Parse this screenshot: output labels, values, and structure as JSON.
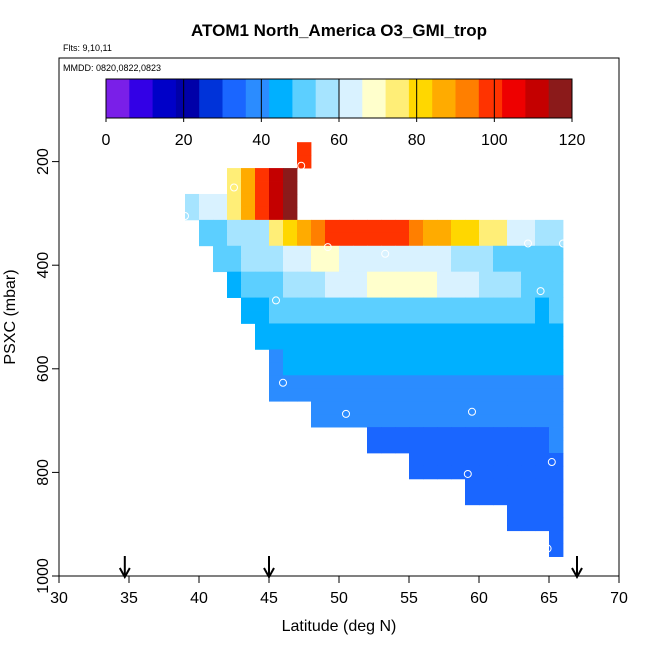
{
  "chart_data": {
    "type": "heatmap",
    "title": "ATOM1 North_America O3_GMI_trop",
    "notes": {
      "flights": "Flts: 9,10,11",
      "dates": "MMDD: 0820,0822,0823"
    },
    "xlabel": "Latitude (deg N)",
    "ylabel": "PSXC (mbar)",
    "xlim": [
      30,
      70
    ],
    "ylim": [
      1000,
      0
    ],
    "x_ticks": [
      30,
      35,
      40,
      45,
      50,
      55,
      60,
      65,
      70
    ],
    "y_ticks": [
      200,
      400,
      600,
      800,
      1000
    ],
    "colorbar": {
      "range": [
        0,
        120
      ],
      "ticks": [
        0,
        20,
        40,
        60,
        80,
        100,
        120
      ],
      "colors": [
        "#7a1fe8",
        "#3300e6",
        "#0000c8",
        "#0000a8",
        "#0033d9",
        "#1a66ff",
        "#2b8cff",
        "#00b0ff",
        "#5ccfff",
        "#a6e4ff",
        "#d9f2ff",
        "#ffffcc",
        "#ffee77",
        "#ffd700",
        "#ffab00",
        "#ff7f00",
        "#ff3300",
        "#ee0000",
        "#c40000",
        "#8b1a1a"
      ]
    },
    "cell_size": {
      "lat": 1.0,
      "psxc": 25
    },
    "rows": [
      {
        "p": 175,
        "start": 47.0,
        "values": [
          100
        ]
      },
      {
        "p": 200,
        "start": 47.0,
        "values": [
          100
        ]
      },
      {
        "p": 225,
        "start": 42.0,
        "values": [
          75,
          84,
          100,
          110,
          118
        ]
      },
      {
        "p": 250,
        "start": 42.0,
        "values": [
          75,
          84,
          100,
          110,
          118
        ]
      },
      {
        "p": 275,
        "start": 39.0,
        "values": [
          56,
          60,
          65,
          75,
          84,
          100,
          110,
          118
        ]
      },
      {
        "p": 300,
        "start": 39.0,
        "values": [
          56,
          60,
          65,
          75,
          84,
          100,
          110,
          118
        ]
      },
      {
        "p": 325,
        "start": 40.0,
        "values": [
          52,
          52,
          55,
          56,
          58,
          75,
          80,
          88,
          92,
          98,
          100,
          100,
          100,
          100,
          98,
          94,
          88,
          84,
          80,
          78,
          75,
          72,
          65,
          60,
          56,
          54
        ]
      },
      {
        "p": 350,
        "start": 40.0,
        "values": [
          52,
          52,
          55,
          56,
          58,
          75,
          80,
          88,
          92,
          98,
          100,
          100,
          100,
          100,
          98,
          94,
          88,
          84,
          80,
          78,
          75,
          72,
          65,
          60,
          56,
          54
        ]
      },
      {
        "p": 375,
        "start": 41.0,
        "values": [
          50,
          52,
          54,
          56,
          58,
          60,
          62,
          66,
          66,
          64,
          62,
          60,
          62,
          64,
          64,
          62,
          60,
          58,
          56,
          54,
          52,
          51,
          50,
          50,
          50
        ]
      },
      {
        "p": 400,
        "start": 41.0,
        "values": [
          50,
          52,
          54,
          56,
          58,
          60,
          62,
          66,
          66,
          64,
          62,
          60,
          62,
          64,
          64,
          62,
          60,
          58,
          56,
          54,
          52,
          51,
          50,
          50,
          50
        ]
      },
      {
        "p": 425,
        "start": 42.0,
        "values": [
          46,
          48,
          50,
          52,
          54,
          56,
          58,
          60,
          62,
          64,
          66,
          68,
          68,
          67,
          66,
          64,
          62,
          60,
          58,
          56,
          54,
          52,
          50,
          48
        ]
      },
      {
        "p": 450,
        "start": 42.0,
        "values": [
          46,
          48,
          50,
          52,
          54,
          56,
          58,
          60,
          62,
          64,
          66,
          68,
          68,
          67,
          66,
          64,
          62,
          60,
          58,
          56,
          54,
          52,
          50,
          48
        ]
      },
      {
        "p": 475,
        "start": 43.0,
        "values": [
          44,
          46,
          50,
          50,
          50,
          50,
          50,
          50,
          50,
          50,
          50,
          50,
          50,
          50,
          50,
          50,
          50,
          50,
          50,
          50,
          48,
          46,
          50
        ]
      },
      {
        "p": 500,
        "start": 43.0,
        "values": [
          44,
          46,
          50,
          50,
          50,
          50,
          50,
          50,
          50,
          50,
          50,
          50,
          50,
          50,
          50,
          50,
          50,
          50,
          50,
          50,
          48,
          46,
          50
        ]
      },
      {
        "p": 525,
        "start": 44.0,
        "values": [
          42,
          44,
          44,
          44,
          44,
          44,
          44,
          44,
          44,
          44,
          44,
          44,
          44,
          44,
          44,
          44,
          44,
          44,
          44,
          44,
          42,
          44
        ]
      },
      {
        "p": 550,
        "start": 44.0,
        "values": [
          42,
          44,
          44,
          44,
          44,
          44,
          44,
          44,
          44,
          44,
          44,
          44,
          44,
          44,
          44,
          44,
          44,
          44,
          44,
          44,
          42,
          44
        ]
      },
      {
        "p": 575,
        "start": 45.0,
        "values": [
          40,
          42,
          44,
          44,
          44,
          44,
          44,
          44,
          44,
          44,
          44,
          44,
          44,
          44,
          44,
          44,
          44,
          44,
          44,
          42,
          44
        ]
      },
      {
        "p": 600,
        "start": 45.0,
        "values": [
          40,
          42,
          44,
          44,
          44,
          44,
          44,
          44,
          44,
          44,
          44,
          44,
          44,
          44,
          44,
          44,
          44,
          44,
          44,
          42,
          44
        ]
      },
      {
        "p": 625,
        "start": 45.0,
        "values": [
          38,
          38,
          38,
          38,
          38,
          38,
          38,
          38,
          38,
          38,
          38,
          38,
          38,
          38,
          38,
          38,
          38,
          38,
          38,
          38,
          40
        ]
      },
      {
        "p": 650,
        "start": 45.0,
        "values": [
          38,
          38,
          38,
          38,
          38,
          38,
          38,
          38,
          38,
          38,
          38,
          38,
          38,
          38,
          38,
          38,
          38,
          38,
          38,
          38,
          40
        ]
      },
      {
        "p": 675,
        "start": 48.0,
        "values": [
          36,
          36,
          36,
          36,
          36,
          36,
          36,
          36,
          36,
          36,
          36,
          36,
          36,
          36,
          36,
          36,
          36,
          38
        ]
      },
      {
        "p": 700,
        "start": 48.0,
        "values": [
          36,
          36,
          36,
          36,
          36,
          36,
          36,
          36,
          36,
          36,
          36,
          36,
          36,
          36,
          36,
          36,
          36,
          38
        ]
      },
      {
        "p": 725,
        "start": 52.0,
        "values": [
          34,
          34,
          34,
          34,
          34,
          34,
          34,
          34,
          34,
          34,
          34,
          34,
          34,
          36
        ]
      },
      {
        "p": 750,
        "start": 52.0,
        "values": [
          34,
          34,
          34,
          34,
          34,
          34,
          34,
          34,
          34,
          34,
          34,
          34,
          34,
          36
        ]
      },
      {
        "p": 775,
        "start": 55.0,
        "values": [
          32,
          32,
          32,
          32,
          32,
          32,
          32,
          32,
          32,
          32,
          34
        ]
      },
      {
        "p": 800,
        "start": 55.0,
        "values": [
          32,
          32,
          32,
          32,
          32,
          32,
          32,
          32,
          32,
          32,
          34
        ]
      },
      {
        "p": 825,
        "start": 59.0,
        "values": [
          32,
          32,
          32,
          32,
          32,
          32,
          32
        ]
      },
      {
        "p": 850,
        "start": 59.0,
        "values": [
          32,
          32,
          32,
          32,
          32,
          32,
          32
        ]
      },
      {
        "p": 875,
        "start": 62.0,
        "values": [
          31,
          31,
          31,
          31
        ]
      },
      {
        "p": 900,
        "start": 62.0,
        "values": [
          31,
          31,
          31,
          31
        ]
      },
      {
        "p": 925,
        "start": 65.0,
        "values": [
          31
        ]
      },
      {
        "p": 950,
        "start": 65.0,
        "values": [
          31
        ]
      }
    ],
    "points": [
      {
        "lat": 47.3,
        "p": 208
      },
      {
        "lat": 42.5,
        "p": 250
      },
      {
        "lat": 39.0,
        "p": 305
      },
      {
        "lat": 49.2,
        "p": 365
      },
      {
        "lat": 53.3,
        "p": 378
      },
      {
        "lat": 63.5,
        "p": 358
      },
      {
        "lat": 66.0,
        "p": 358
      },
      {
        "lat": 64.4,
        "p": 450
      },
      {
        "lat": 45.5,
        "p": 468
      },
      {
        "lat": 46.0,
        "p": 627
      },
      {
        "lat": 50.5,
        "p": 687
      },
      {
        "lat": 59.5,
        "p": 683
      },
      {
        "lat": 59.2,
        "p": 803
      },
      {
        "lat": 65.2,
        "p": 780
      },
      {
        "lat": 64.9,
        "p": 947
      }
    ],
    "arrows": [
      34.7,
      45.0,
      67.0
    ]
  }
}
